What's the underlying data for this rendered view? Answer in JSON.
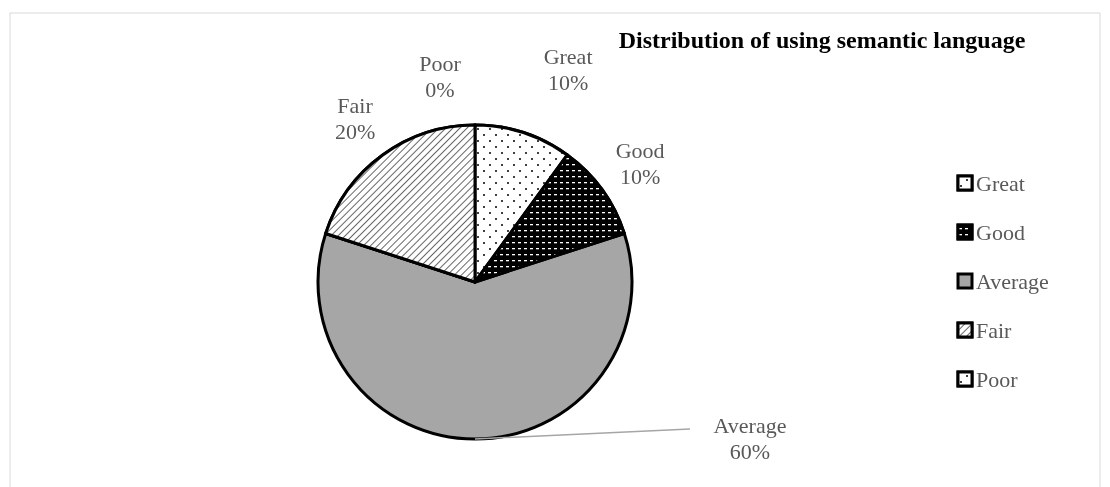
{
  "chart_data": {
    "type": "pie",
    "title": "Distribution of using semantic language",
    "categories": [
      "Great",
      "Good",
      "Average",
      "Fair",
      "Poor"
    ],
    "values": [
      10,
      10,
      60,
      20,
      0
    ],
    "value_labels": [
      "10%",
      "10%",
      "60%",
      "20%",
      "0%"
    ],
    "colors": [
      "#ffffff",
      "#000000",
      "#a6a6a6",
      "#ffffff",
      "#ffffff"
    ],
    "legend": "right"
  }
}
